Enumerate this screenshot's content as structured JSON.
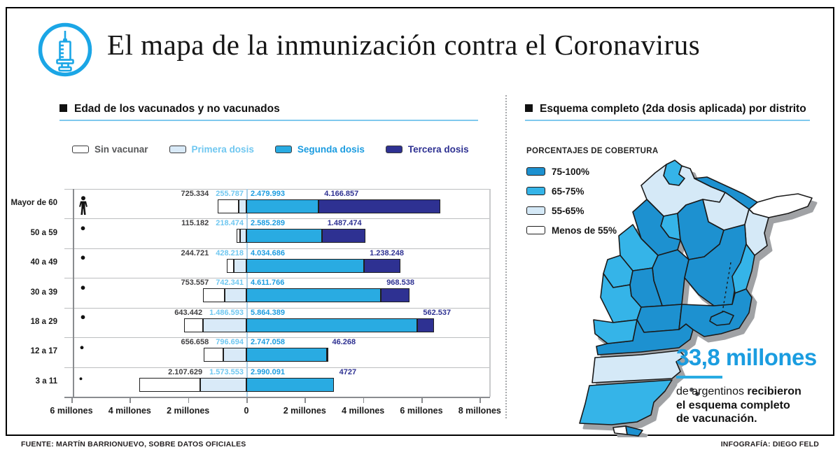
{
  "header": {
    "title": "El mapa de la inmunización contra el Coronavirus",
    "icon": "syringe-icon"
  },
  "left_panel": {
    "section_title": "Edad de los vacunados y no vacunados",
    "legend": [
      {
        "key": "sin",
        "label": "Sin vacunar",
        "swatch": "#ffffff",
        "text_color": "#58595b"
      },
      {
        "key": "primera",
        "label": "Primera dosis",
        "swatch": "#d9eaf8",
        "text_color": "#6fc7f0"
      },
      {
        "key": "segunda",
        "label": "Segunda dosis",
        "swatch": "#29abe2",
        "text_color": "#1b9ce0"
      },
      {
        "key": "tercera",
        "label": "Tercera dosis",
        "swatch": "#2e3192",
        "text_color": "#2e3192"
      }
    ]
  },
  "chart_data": [
    {
      "type": "bar",
      "subtype": "diverging-stacked-horizontal",
      "title": "Edad de los vacunados y no vacunados",
      "categories": [
        "Mayor de 60",
        "50 a 59",
        "40 a 49",
        "30 a 39",
        "18 a 29",
        "12 a 17",
        "3 a 11"
      ],
      "icons": [
        "elderly",
        "adult",
        "adult",
        "adult",
        "adult",
        "teen",
        "child"
      ],
      "series": [
        {
          "name": "Sin vacunar",
          "side": "left",
          "color": "#ffffff",
          "label_color": "#414042",
          "values": [
            725334,
            115182,
            244721,
            753557,
            643442,
            656658,
            2107629
          ],
          "labels": [
            "725.334",
            "115.182",
            "244.721",
            "753.557",
            "643.442",
            "656.658",
            "2.107.629"
          ]
        },
        {
          "name": "Primera dosis",
          "side": "left",
          "color": "#d9eaf8",
          "label_color": "#6fc7f0",
          "values": [
            255787,
            218474,
            428218,
            742341,
            1486593,
            796694,
            1573553
          ],
          "labels": [
            "255.787",
            "218.474",
            "428.218",
            "742.341",
            "1.486.593",
            "796.694",
            "1.573.553"
          ]
        },
        {
          "name": "Segunda dosis",
          "side": "right",
          "color": "#29abe2",
          "label_color": "#1b9ce0",
          "values": [
            2479993,
            2585289,
            4034686,
            4611766,
            5864389,
            2747058,
            2990091
          ],
          "labels": [
            "2.479.993",
            "2.585.289",
            "4.034.686",
            "4.611.766",
            "5.864.389",
            "2.747.058",
            "2.990.091"
          ]
        },
        {
          "name": "Tercera dosis",
          "side": "right",
          "color": "#2e3192",
          "label_color": "#2e3192",
          "values": [
            4166857,
            1487474,
            1238248,
            968538,
            562537,
            46268,
            4727
          ],
          "labels": [
            "4.166.857",
            "1.487.474",
            "1.238.248",
            "968.538",
            "562.537",
            "46.268",
            "4727"
          ]
        }
      ],
      "x_ticks": [
        "6 millones",
        "4 millones",
        "2 millones",
        "0",
        "2 millones",
        "4 millones",
        "6 millones",
        "8 millones"
      ],
      "x_tick_millions": [
        -6,
        -4,
        -2,
        0,
        2,
        4,
        6,
        8
      ],
      "xlim_millions": [
        -6.4,
        8.35
      ],
      "grid": "row-separators"
    },
    {
      "type": "heatmap",
      "subtype": "choropleth-map-argentina",
      "title": "Esquema completo (2da dosis aplicada) por distrito",
      "legend_title": "PORCENTAJES DE COBERTURA",
      "bins": [
        "75-100%",
        "65-75%",
        "55-65%",
        "Menos de 55%"
      ],
      "provinces": [
        {
          "name": "jujuy",
          "coverage": "65-75%"
        },
        {
          "name": "salta",
          "coverage": "55-65%"
        },
        {
          "name": "formosa",
          "coverage": "75-100%"
        },
        {
          "name": "chaco",
          "coverage": "55-65%"
        },
        {
          "name": "misiones",
          "coverage": "Menos de 55%"
        },
        {
          "name": "corrientes",
          "coverage": "55-65%"
        },
        {
          "name": "tucuman",
          "coverage": "65-75%"
        },
        {
          "name": "santiago-del-estero",
          "coverage": "75-100%"
        },
        {
          "name": "catamarca",
          "coverage": "75-100%"
        },
        {
          "name": "la-rioja",
          "coverage": "65-75%"
        },
        {
          "name": "san-juan",
          "coverage": "65-75%"
        },
        {
          "name": "cordoba",
          "coverage": "75-100%"
        },
        {
          "name": "santa-fe",
          "coverage": "75-100%"
        },
        {
          "name": "entre-rios",
          "coverage": "65-75%"
        },
        {
          "name": "mendoza",
          "coverage": "65-75%"
        },
        {
          "name": "san-luis",
          "coverage": "75-100%"
        },
        {
          "name": "la-pampa",
          "coverage": "75-100%"
        },
        {
          "name": "rio-negro",
          "coverage": "75-100%"
        },
        {
          "name": "neuquen",
          "coverage": "65-75%"
        },
        {
          "name": "buenos-aires",
          "coverage": "75-100%"
        },
        {
          "name": "chubut",
          "coverage": "55-65%"
        },
        {
          "name": "santa-cruz",
          "coverage": "65-75%"
        },
        {
          "name": "tdf-oeste",
          "coverage": "Menos de 55%"
        },
        {
          "name": "tierra-del-fuego",
          "coverage": "75-100%"
        },
        {
          "name": "malvinas",
          "coverage": "75-100%"
        }
      ]
    }
  ],
  "right_panel": {
    "section_title": "Esquema completo (2da dosis aplicada) por distrito",
    "coverage_title": "PORCENTAJES DE COBERTURA",
    "map_legend": [
      {
        "label": "75-100%",
        "color": "#1d91d0"
      },
      {
        "label": "65-75%",
        "color": "#35b4e8"
      },
      {
        "label": "55-65%",
        "color": "#d5e9f7"
      },
      {
        "label": "Menos de 55%",
        "color": "#ffffff"
      }
    ],
    "callout": {
      "value": "33,8 millones",
      "intro": "de argentinos ",
      "bold1": "recibieron",
      "line2": "el esquema completo",
      "line3": "de vacunación."
    }
  },
  "footer": {
    "source": "FUENTE: MARTÍN BARRIONUEVO, SOBRE DATOS OFICIALES",
    "credit": "INFOGRAFÍA: DIEGO FELD"
  },
  "colors": {
    "accent": "#1ba6e6",
    "rule": "#7fc9ee",
    "zero_line": "#a8cfe8",
    "navy": "#2e3192",
    "cyan": "#29abe2",
    "pale_blue": "#d9eaf8",
    "map_shadow": "#a0a2a5"
  }
}
